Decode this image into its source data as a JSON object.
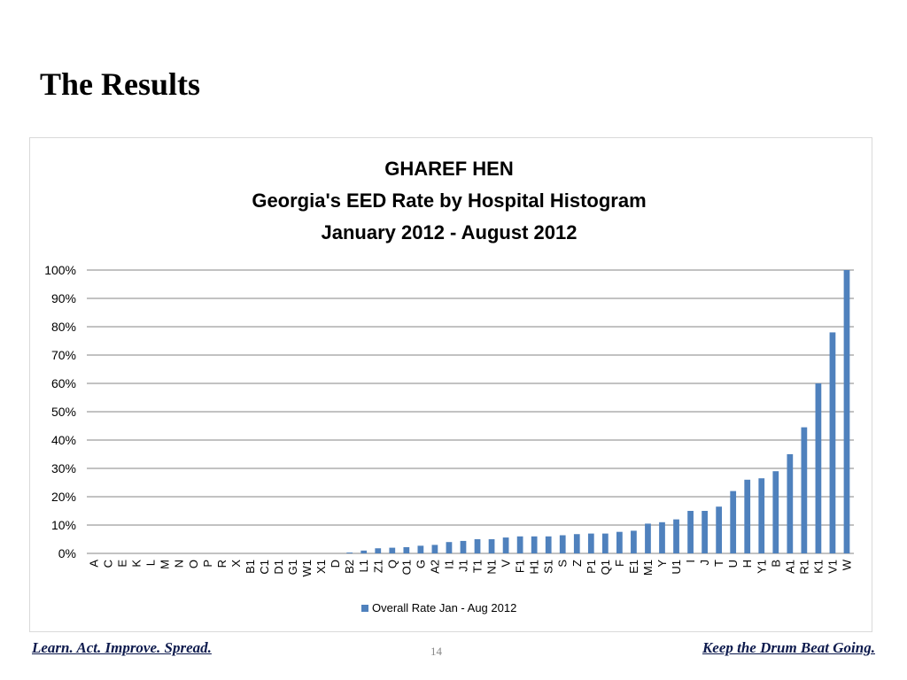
{
  "slide": {
    "title": "The Results",
    "footer_left": "Learn. Act. Improve. Spread.",
    "page_number": "14",
    "footer_right": "Keep the Drum Beat Going."
  },
  "chart_data": {
    "type": "bar",
    "title_lines": [
      "GHAREF HEN",
      "Georgia's EED Rate by Hospital Histogram",
      "January 2012 - August 2012"
    ],
    "categories": [
      "A",
      "C",
      "E",
      "K",
      "L",
      "M",
      "N",
      "O",
      "P",
      "R",
      "X",
      "B1",
      "C1",
      "D1",
      "G1",
      "W1",
      "X1",
      "D",
      "B2",
      "L1",
      "Z1",
      "Q",
      "O1",
      "G",
      "A2",
      "I1",
      "J1",
      "T1",
      "N1",
      "V",
      "F1",
      "H1",
      "S1",
      "S",
      "Z",
      "P1",
      "Q1",
      "F",
      "E1",
      "M1",
      "Y",
      "U1",
      "I",
      "J",
      "T",
      "U",
      "H",
      "Y1",
      "B",
      "A1",
      "R1",
      "K1",
      "V1",
      "W"
    ],
    "series": [
      {
        "name": "Overall Rate Jan - Aug 2012",
        "color": "#4f81bd",
        "values": [
          0,
          0,
          0,
          0,
          0,
          0,
          0,
          0,
          0,
          0,
          0,
          0,
          0,
          0,
          0,
          0,
          0,
          0,
          0.3,
          1,
          1.8,
          2,
          2.2,
          2.7,
          3,
          4,
          4.4,
          5,
          5,
          5.6,
          6,
          6,
          6,
          6.4,
          6.8,
          7,
          7,
          7.6,
          8,
          10.5,
          11,
          12,
          15,
          15,
          16.5,
          22,
          26,
          26.5,
          29,
          35,
          44.5,
          60,
          78,
          100
        ]
      }
    ],
    "ylim": [
      0,
      100
    ],
    "yticks": [
      "0%",
      "10%",
      "20%",
      "30%",
      "40%",
      "50%",
      "60%",
      "70%",
      "80%",
      "90%",
      "100%"
    ],
    "grid": true,
    "legend_position": "bottom"
  }
}
